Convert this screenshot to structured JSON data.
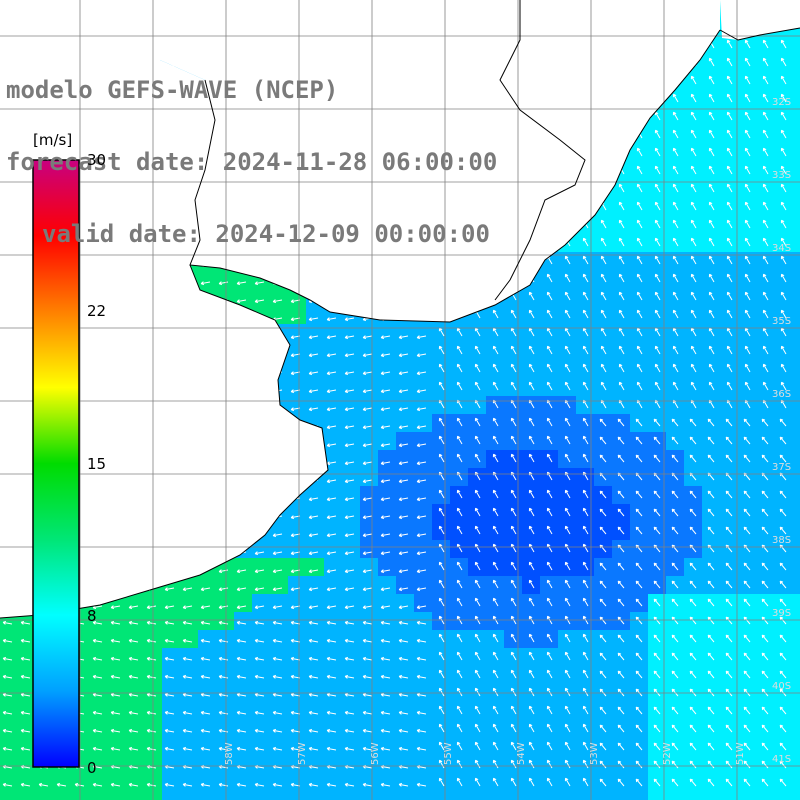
{
  "header": {
    "model": "modelo GEFS-WAVE (NCEP)",
    "forecast": "forecast date: 2024-11-28 06:00:00",
    "valid": "valid date: 2024-12-09 00:00:00"
  },
  "colorbar": {
    "unit": "[m/s]",
    "ticks": [
      "30",
      "22",
      "15",
      "8",
      "0"
    ],
    "range": [
      0,
      30
    ],
    "colors": [
      "#0000ff",
      "#00a0ff",
      "#00ffff",
      "#00e676",
      "#00dc00",
      "#ffff00",
      "#ff8000",
      "#ff0000",
      "#c80080"
    ]
  },
  "lat_labels": [
    "32S",
    "33S",
    "34S",
    "35S",
    "36S",
    "37S",
    "38S",
    "39S",
    "40S",
    "41S"
  ],
  "lon_labels": [
    "58W",
    "57W",
    "56W",
    "55W",
    "54W",
    "53W",
    "52W",
    "51W"
  ],
  "field": {
    "variable": "wind speed with direction arrows",
    "palette": {
      "blue": "#0050ff",
      "light_blue": "#00b4ff",
      "cyan": "#00f0ff",
      "green": "#00e676",
      "land": "#ffffff",
      "coast": "#000000",
      "grid": "#808080"
    }
  }
}
